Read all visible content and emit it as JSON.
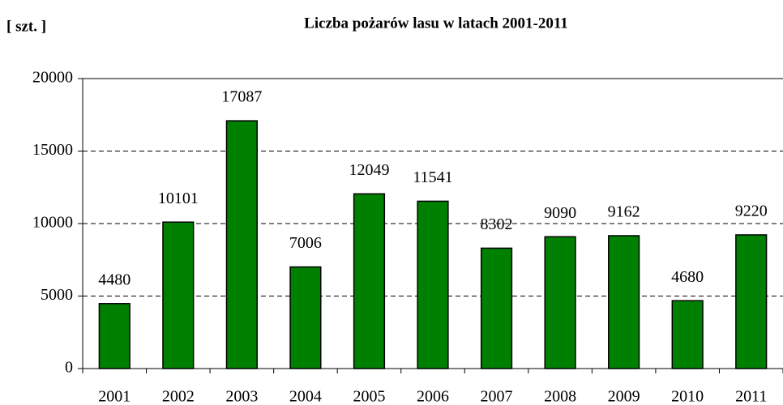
{
  "chart_data": {
    "type": "bar",
    "title": "Liczba pożarów lasu w latach 2001-2011",
    "y_label": "[ szt. ]",
    "categories": [
      "2001",
      "2002",
      "2003",
      "2004",
      "2005",
      "2006",
      "2007",
      "2008",
      "2009",
      "2010",
      "2011"
    ],
    "values": [
      4480,
      10101,
      17087,
      7006,
      12049,
      11541,
      8302,
      9090,
      9162,
      4680,
      9220
    ],
    "color": "#008000",
    "ylim": [
      0,
      20000
    ],
    "yticks": [
      0,
      5000,
      10000,
      15000,
      20000
    ],
    "grid": true
  }
}
